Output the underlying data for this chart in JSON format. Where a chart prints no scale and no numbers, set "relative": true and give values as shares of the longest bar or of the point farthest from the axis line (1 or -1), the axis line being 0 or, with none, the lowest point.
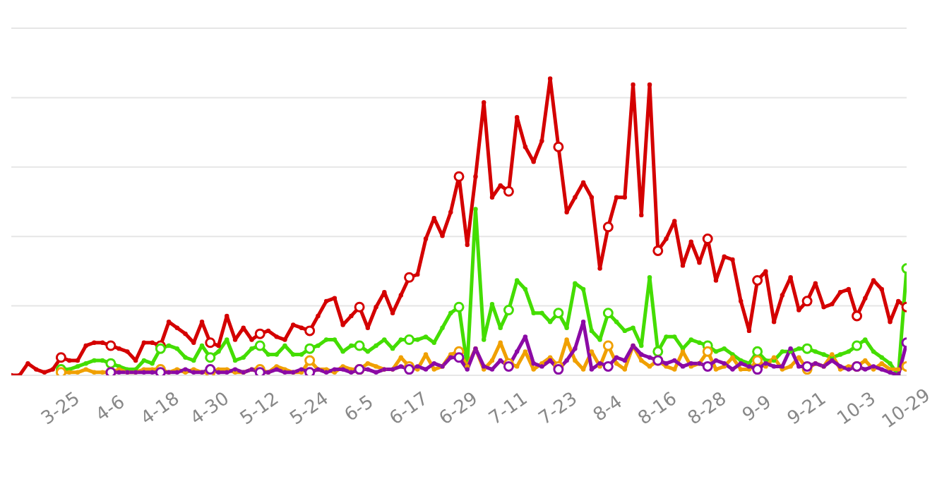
{
  "chart_data": {
    "type": "line",
    "relative": true,
    "grid": "y",
    "marker": "circle",
    "line_style": "solid",
    "categories": [
      null,
      null,
      null,
      null,
      null,
      null,
      "3-25",
      null,
      null,
      null,
      null,
      null,
      "4-6",
      null,
      null,
      null,
      null,
      null,
      "4-18",
      null,
      null,
      null,
      null,
      null,
      "4-30",
      null,
      null,
      null,
      null,
      null,
      "5-12",
      null,
      null,
      null,
      null,
      null,
      "5-24",
      null,
      null,
      null,
      null,
      null,
      "6-5",
      null,
      null,
      null,
      null,
      null,
      "6-17",
      null,
      null,
      null,
      null,
      null,
      "6-29",
      null,
      null,
      null,
      null,
      null,
      "7-11",
      null,
      null,
      null,
      null,
      null,
      "7-23",
      null,
      null,
      null,
      null,
      null,
      "8-4",
      null,
      null,
      null,
      null,
      null,
      "8-16",
      null,
      null,
      null,
      null,
      null,
      "8-28",
      null,
      null,
      null,
      null,
      null,
      "9-9",
      null,
      null,
      null,
      null,
      null,
      "9-21",
      null,
      null,
      null,
      null,
      null,
      "10-3",
      null,
      null,
      null,
      null,
      null,
      "10-29"
    ],
    "series": [
      {
        "color": "#d40000",
        "values": [
          0.0,
          0.0,
          0.04,
          0.02,
          0.01,
          0.02,
          0.06,
          0.05,
          0.05,
          0.1,
          0.11,
          0.11,
          0.1,
          0.09,
          0.08,
          0.05,
          0.11,
          0.11,
          0.1,
          0.18,
          0.16,
          0.14,
          0.11,
          0.18,
          0.11,
          0.1,
          0.2,
          0.12,
          0.16,
          0.12,
          0.14,
          0.15,
          0.13,
          0.12,
          0.17,
          0.16,
          0.15,
          0.2,
          0.25,
          0.26,
          0.17,
          0.2,
          0.23,
          0.16,
          0.23,
          0.28,
          0.21,
          0.27,
          0.33,
          0.34,
          0.46,
          0.53,
          0.47,
          0.55,
          0.67,
          0.44,
          0.67,
          0.92,
          0.6,
          0.64,
          0.62,
          0.87,
          0.77,
          0.72,
          0.79,
          1.0,
          0.77,
          0.55,
          0.6,
          0.65,
          0.6,
          0.36,
          0.5,
          0.6,
          0.6,
          0.98,
          0.54,
          0.98,
          0.42,
          0.46,
          0.52,
          0.37,
          0.45,
          0.38,
          0.46,
          0.32,
          0.4,
          0.39,
          0.25,
          0.15,
          0.32,
          0.35,
          0.18,
          0.27,
          0.33,
          0.22,
          0.25,
          0.31,
          0.23,
          0.24,
          0.28,
          0.29,
          0.2,
          0.26,
          0.32,
          0.29,
          0.18,
          0.25,
          0.23
        ]
      },
      {
        "color": "#44dd00",
        "values": [
          null,
          null,
          null,
          null,
          null,
          null,
          0.02,
          0.02,
          0.03,
          0.04,
          0.05,
          0.05,
          0.04,
          0.03,
          0.02,
          0.02,
          0.05,
          0.04,
          0.09,
          0.1,
          0.09,
          0.06,
          0.05,
          0.1,
          0.06,
          0.08,
          0.12,
          0.05,
          0.06,
          0.09,
          0.1,
          0.07,
          0.07,
          0.1,
          0.07,
          0.07,
          0.09,
          0.1,
          0.12,
          0.12,
          0.08,
          0.1,
          0.1,
          0.08,
          0.1,
          0.12,
          0.09,
          0.12,
          0.12,
          0.12,
          0.13,
          0.11,
          0.16,
          0.21,
          0.23,
          0.03,
          0.56,
          0.12,
          0.24,
          0.16,
          0.22,
          0.32,
          0.29,
          0.21,
          0.21,
          0.18,
          0.21,
          0.16,
          0.31,
          0.29,
          0.15,
          0.12,
          0.21,
          0.18,
          0.15,
          0.16,
          0.1,
          0.33,
          0.08,
          0.13,
          0.13,
          0.09,
          0.12,
          0.11,
          0.1,
          0.08,
          0.09,
          0.07,
          0.05,
          0.04,
          0.08,
          0.05,
          0.05,
          0.08,
          0.08,
          0.09,
          0.09,
          0.08,
          0.07,
          0.06,
          0.07,
          0.08,
          0.1,
          0.12,
          0.08,
          0.06,
          0.04,
          0.0,
          0.36
        ]
      },
      {
        "color": "#f0a000",
        "values": [
          null,
          null,
          null,
          null,
          null,
          null,
          0.01,
          0.01,
          0.01,
          0.02,
          0.01,
          0.01,
          0.01,
          0.02,
          0.01,
          0.01,
          0.02,
          0.02,
          0.02,
          0.01,
          0.02,
          0.01,
          0.02,
          0.01,
          0.01,
          0.02,
          0.02,
          0.01,
          0.01,
          0.02,
          0.02,
          0.01,
          0.03,
          0.02,
          0.01,
          0.01,
          0.05,
          0.02,
          0.02,
          0.01,
          0.03,
          0.02,
          0.02,
          0.04,
          0.03,
          0.02,
          0.02,
          0.06,
          0.03,
          0.02,
          0.07,
          0.02,
          0.03,
          0.07,
          0.08,
          0.03,
          0.09,
          0.02,
          0.05,
          0.11,
          0.04,
          0.03,
          0.08,
          0.02,
          0.04,
          0.06,
          0.03,
          0.12,
          0.05,
          0.02,
          0.08,
          0.03,
          0.1,
          0.04,
          0.02,
          0.1,
          0.05,
          0.03,
          0.05,
          0.03,
          0.02,
          0.08,
          0.03,
          0.04,
          0.08,
          0.02,
          0.03,
          0.06,
          0.02,
          0.02,
          0.05,
          0.03,
          0.06,
          0.02,
          0.03,
          0.06,
          0.02,
          0.04,
          0.03,
          0.07,
          0.02,
          0.03,
          0.03,
          0.05,
          0.02,
          0.04,
          0.02,
          0.02,
          0.03
        ]
      },
      {
        "color": "#8b0aa5",
        "values": [
          null,
          null,
          null,
          null,
          null,
          null,
          null,
          null,
          null,
          null,
          null,
          null,
          0.01,
          0.01,
          0.01,
          0.01,
          0.01,
          0.01,
          0.01,
          0.01,
          0.01,
          0.02,
          0.01,
          0.01,
          0.02,
          0.01,
          0.01,
          0.02,
          0.01,
          0.02,
          0.01,
          0.01,
          0.02,
          0.01,
          0.01,
          0.02,
          0.01,
          0.02,
          0.01,
          0.02,
          0.02,
          0.01,
          0.02,
          0.02,
          0.01,
          0.02,
          0.02,
          0.03,
          0.02,
          0.03,
          0.02,
          0.04,
          0.03,
          0.06,
          0.06,
          0.02,
          0.09,
          0.03,
          0.02,
          0.05,
          0.03,
          0.08,
          0.13,
          0.04,
          0.03,
          0.05,
          0.02,
          0.05,
          0.09,
          0.18,
          0.02,
          0.04,
          0.03,
          0.06,
          0.05,
          0.1,
          0.07,
          0.06,
          0.05,
          0.04,
          0.05,
          0.03,
          0.04,
          0.04,
          0.03,
          0.05,
          0.04,
          0.02,
          0.04,
          0.03,
          0.02,
          0.04,
          0.03,
          0.03,
          0.09,
          0.03,
          0.03,
          0.04,
          0.03,
          0.05,
          0.03,
          0.02,
          0.03,
          0.02,
          0.03,
          0.02,
          0.01,
          0.0,
          0.11
        ]
      }
    ]
  }
}
